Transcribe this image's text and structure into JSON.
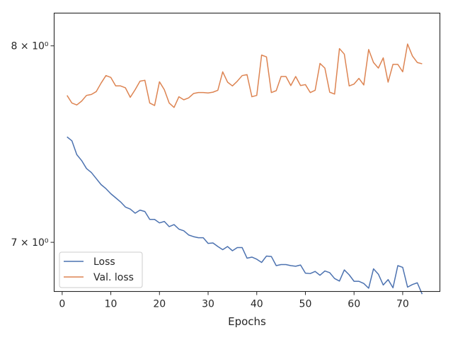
{
  "chart_data": {
    "type": "line",
    "xlabel": "Epochs",
    "ylabel": "",
    "yscale": "log",
    "xlim": [
      -1.65,
      77.65
    ],
    "ylim": [
      6.77,
      8.18
    ],
    "x_ticks": [
      0,
      10,
      20,
      30,
      40,
      50,
      60,
      70
    ],
    "x_tick_labels": [
      "0",
      "10",
      "20",
      "30",
      "40",
      "50",
      "60",
      "70"
    ],
    "y_ticks": [
      7,
      8
    ],
    "y_tick_labels": [
      "7 × 10⁰",
      "8 × 10⁰"
    ],
    "grid": false,
    "legend_position": "lower-left",
    "series": [
      {
        "name": "Loss",
        "color": "#4c72b0",
        "x": [
          1,
          2,
          3,
          4,
          5,
          6,
          7,
          8,
          9,
          10,
          11,
          12,
          13,
          14,
          15,
          16,
          17,
          18,
          19,
          20,
          21,
          22,
          23,
          24,
          25,
          26,
          27,
          28,
          29,
          30,
          31,
          32,
          33,
          34,
          35,
          36,
          37,
          38,
          39,
          40,
          41,
          42,
          43,
          44,
          45,
          46,
          47,
          48,
          49,
          50,
          51,
          52,
          53,
          54,
          55,
          56,
          57,
          58,
          59,
          60,
          61,
          62,
          63,
          64,
          65,
          66,
          67,
          68,
          69,
          70,
          71,
          72,
          73,
          74
        ],
        "values": [
          7.52,
          7.5,
          7.43,
          7.4,
          7.36,
          7.34,
          7.31,
          7.28,
          7.26,
          7.235,
          7.215,
          7.195,
          7.17,
          7.16,
          7.14,
          7.155,
          7.148,
          7.11,
          7.11,
          7.093,
          7.1,
          7.075,
          7.085,
          7.063,
          7.055,
          7.035,
          7.027,
          7.022,
          7.022,
          6.995,
          6.997,
          6.98,
          6.965,
          6.98,
          6.96,
          6.975,
          6.975,
          6.925,
          6.93,
          6.92,
          6.905,
          6.935,
          6.933,
          6.89,
          6.895,
          6.895,
          6.89,
          6.887,
          6.893,
          6.855,
          6.853,
          6.863,
          6.845,
          6.865,
          6.857,
          6.83,
          6.818,
          6.87,
          6.847,
          6.817,
          6.817,
          6.807,
          6.785,
          6.875,
          6.85,
          6.8,
          6.825,
          6.787,
          6.89,
          6.882,
          6.79,
          6.802,
          6.81,
          6.758
        ]
      },
      {
        "name": "Val. loss",
        "color": "#dd8452",
        "x": [
          1,
          2,
          3,
          4,
          5,
          6,
          7,
          8,
          9,
          10,
          11,
          12,
          13,
          14,
          15,
          16,
          17,
          18,
          19,
          20,
          21,
          22,
          23,
          24,
          25,
          26,
          27,
          28,
          29,
          30,
          31,
          32,
          33,
          34,
          35,
          36,
          37,
          38,
          39,
          40,
          41,
          42,
          43,
          44,
          45,
          46,
          47,
          48,
          49,
          50,
          51,
          52,
          53,
          54,
          55,
          56,
          57,
          58,
          59,
          60,
          61,
          62,
          63,
          64,
          65,
          66,
          67,
          68,
          69,
          70,
          71,
          72,
          73,
          74
        ],
        "values": [
          7.735,
          7.695,
          7.685,
          7.705,
          7.735,
          7.74,
          7.755,
          7.8,
          7.84,
          7.83,
          7.785,
          7.785,
          7.775,
          7.725,
          7.765,
          7.81,
          7.815,
          7.695,
          7.682,
          7.807,
          7.765,
          7.695,
          7.672,
          7.728,
          7.712,
          7.722,
          7.745,
          7.75,
          7.75,
          7.748,
          7.752,
          7.762,
          7.86,
          7.805,
          7.785,
          7.81,
          7.84,
          7.845,
          7.728,
          7.735,
          7.95,
          7.94,
          7.75,
          7.76,
          7.835,
          7.835,
          7.787,
          7.835,
          7.787,
          7.792,
          7.75,
          7.762,
          7.905,
          7.88,
          7.752,
          7.742,
          7.985,
          7.955,
          7.785,
          7.795,
          7.825,
          7.79,
          7.98,
          7.91,
          7.88,
          7.935,
          7.805,
          7.9,
          7.9,
          7.86,
          8.01,
          7.945,
          7.91,
          7.903
        ]
      }
    ]
  }
}
